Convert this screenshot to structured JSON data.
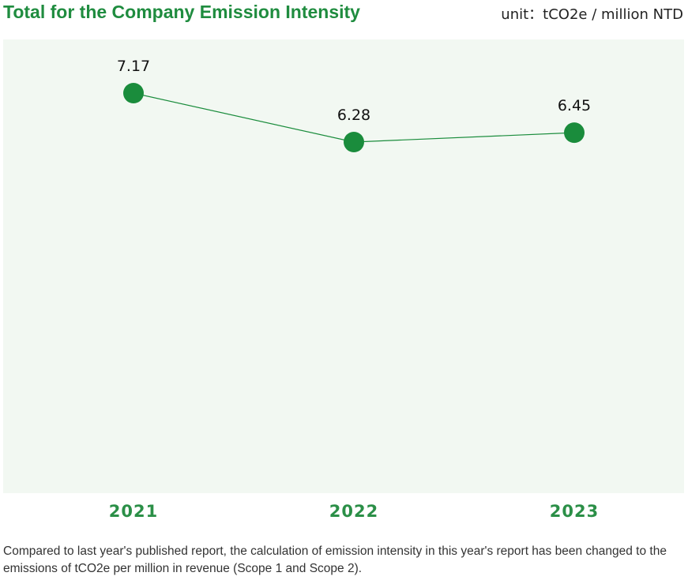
{
  "header": {
    "title": "Total for the Company Emission Intensity",
    "unit": "unit：tCO2e / million NTD"
  },
  "note": "Compared to last year's published report, the calculation of emission intensity in this year's report has been changed to the emissions of tCO2e per million in revenue (Scope 1 and Scope 2).",
  "colors": {
    "accent": "#1f8c3f",
    "marker": "#1a8c3c",
    "line": "#1a8c3c",
    "plot_background": "#f2f8f2"
  },
  "chart_data": {
    "type": "line",
    "title": "Total for the Company Emission Intensity",
    "categories": [
      "2021",
      "2022",
      "2023"
    ],
    "values": [
      7.17,
      6.28,
      6.45
    ],
    "value_labels": [
      "7.17",
      "6.28",
      "6.45"
    ],
    "ylim": [
      0,
      9
    ],
    "grid": false,
    "legend": "none"
  }
}
